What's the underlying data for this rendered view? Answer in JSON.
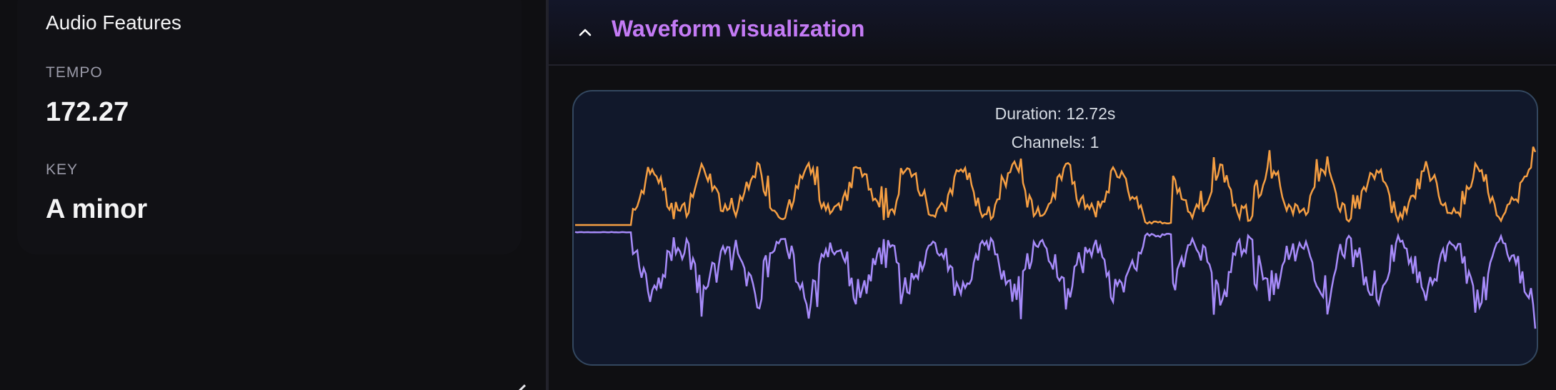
{
  "left_panel": {
    "card_title": "Audio Features",
    "features": [
      {
        "label": "TEMPO",
        "value": "172.27"
      },
      {
        "label": "KEY",
        "value": "A minor"
      }
    ]
  },
  "right_panel": {
    "section_title": "Waveform visualization",
    "toggle_icon": "chevron-up-icon",
    "waveform": {
      "duration_text": "Duration: 12.72s",
      "channels_text": "Channels: 1",
      "colors": {
        "positive": "#f59e42",
        "negative": "#a78bfa",
        "background": "#11182b",
        "border": "#33475f"
      }
    }
  },
  "colors": {
    "accent": "#c47bf5",
    "page_bg": "#0f0f12"
  }
}
